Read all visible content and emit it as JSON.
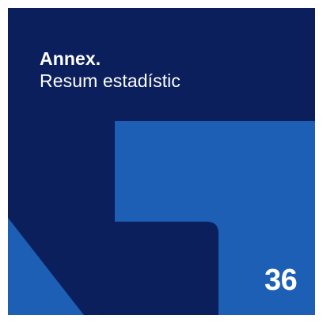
{
  "colors": {
    "navy": "#0b1f5c",
    "dark_navy": "#07164a",
    "blue": "#1c5fb5",
    "text": "#ffffff"
  },
  "header": {
    "title": "Annex.",
    "subtitle": "Resum estadístic"
  },
  "page": {
    "number": "36"
  }
}
